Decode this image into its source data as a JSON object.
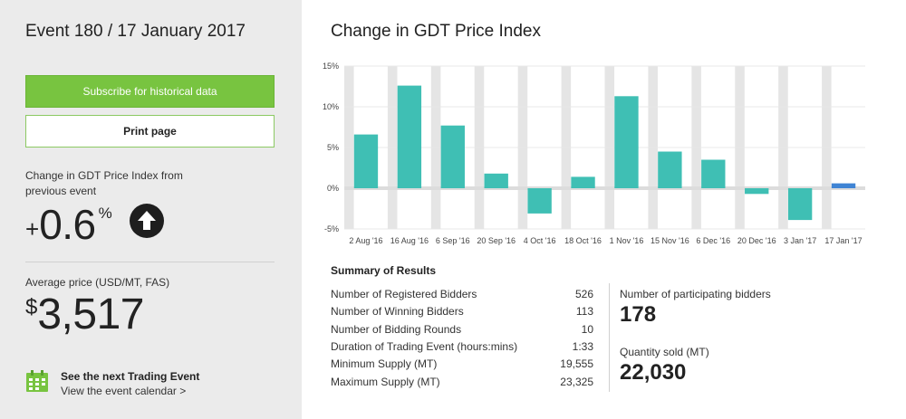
{
  "sidebar": {
    "event_title": "Event 180 / 17 January 2017",
    "subscribe_label": "Subscribe for historical data",
    "print_label": "Print page",
    "change_label": "Change in GDT Price Index from previous event",
    "change_sign": "+",
    "change_value": "0.6",
    "change_unit": "%",
    "change_icon": "arrow-up-icon",
    "price_label": "Average price (USD/MT, FAS)",
    "price_currency": "$",
    "price_value": "3,517",
    "next_event_title": "See the next Trading Event",
    "next_event_link": "View the event calendar >",
    "calendar_icon": "calendar-icon"
  },
  "chart": {
    "title": "Change in GDT Price Index"
  },
  "chart_data": {
    "type": "bar",
    "categories": [
      "2 Aug '16",
      "16 Aug '16",
      "6 Sep '16",
      "20 Sep '16",
      "4 Oct '16",
      "18 Oct '16",
      "1 Nov '16",
      "15 Nov '16",
      "6 Dec '16",
      "20 Dec '16",
      "3 Jan '17",
      "17 Jan '17"
    ],
    "values": [
      6.6,
      12.6,
      7.7,
      1.8,
      -3.1,
      1.4,
      11.3,
      4.5,
      3.5,
      -0.7,
      -3.9,
      0.6
    ],
    "yticks": [
      "15%",
      "10%",
      "5%",
      "0%",
      "-5%"
    ],
    "ylim": [
      -5,
      15
    ],
    "grid": true,
    "colors": {
      "bar": "#3fbfb4",
      "highlight": "#3f84d4",
      "band": "#e5e5e5"
    }
  },
  "summary": {
    "title": "Summary of Results",
    "rows": [
      {
        "label": "Number of Registered Bidders",
        "value": "526"
      },
      {
        "label": "Number of Winning Bidders",
        "value": "113"
      },
      {
        "label": "Number of Bidding Rounds",
        "value": "10"
      },
      {
        "label": "Duration of Trading Event (hours:mins)",
        "value": "1:33"
      },
      {
        "label": "Minimum Supply (MT)",
        "value": "19,555"
      },
      {
        "label": "Maximum Supply (MT)",
        "value": "23,325"
      }
    ],
    "participating_label": "Number of participating bidders",
    "participating_value": "178",
    "quantity_label": "Quantity sold (MT)",
    "quantity_value": "22,030"
  }
}
